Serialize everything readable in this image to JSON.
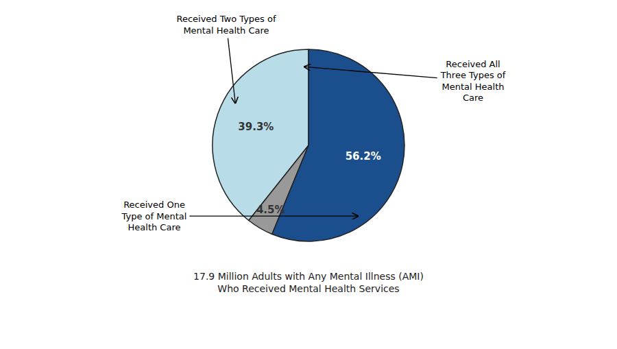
{
  "chart_data": {
    "type": "pie",
    "subtitle": "17.9 Million Adults with Any Mental Illness (AMI)\nWho Received Mental Health Services",
    "values": [
      39.3,
      4.5,
      56.2
    ],
    "value_labels": [
      "39.3%",
      "4.5%",
      "56.2%"
    ],
    "colors": [
      "#b8dde8",
      "#999999",
      "#1a4e8c"
    ],
    "data_labels": true,
    "annotations": [
      "Received Two Types of\nMental Health Care",
      "Received All\nThree Types of\nMental Health\nCare",
      "Received One\nType of Mental\nHealth Care"
    ]
  }
}
